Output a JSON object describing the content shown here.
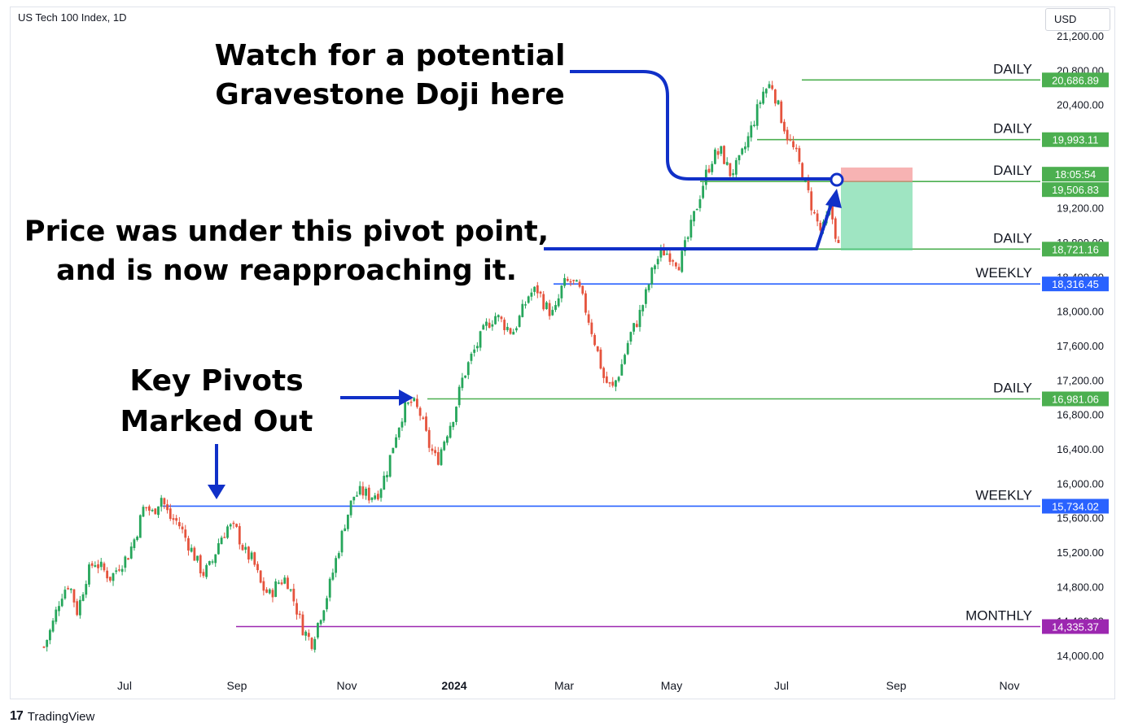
{
  "header": {
    "symbol": "US Tech 100 Index, 1D",
    "currency": "USD"
  },
  "footer": {
    "brand": "TradingView",
    "logo_text": "17"
  },
  "colors": {
    "up": "#26a65b",
    "down": "#e5533d",
    "daily": "#4caf50",
    "weekly": "#2962ff",
    "monthly": "#9c27b0",
    "annotation": "#1030c8"
  },
  "chart_data": {
    "type": "candlestick",
    "title": "",
    "ylim": [
      13900,
      21200
    ],
    "y_ticks": [
      "21,200.00",
      "20,800.00",
      "20,400.00",
      "20,000.00",
      "19,600.00",
      "19,200.00",
      "18,800.00",
      "18,400.00",
      "18,000.00",
      "17,600.00",
      "17,200.00",
      "16,800.00",
      "16,400.00",
      "16,000.00",
      "15,600.00",
      "15,200.00",
      "14,800.00",
      "14,400.00",
      "14,000.00"
    ],
    "x_ticks": [
      "Jul",
      "Sep",
      "Nov",
      "2024",
      "Mar",
      "May",
      "Jul",
      "Sep",
      "Nov"
    ],
    "close_path": [
      14100,
      14350,
      14700,
      14850,
      14500,
      14900,
      15100,
      15000,
      14900,
      15050,
      15150,
      15400,
      15750,
      15650,
      15850,
      15600,
      15550,
      15350,
      15150,
      14950,
      15050,
      15350,
      15500,
      15450,
      15200,
      15100,
      14800,
      14700,
      14850,
      14900,
      14600,
      14300,
      14150,
      14450,
      14750,
      15150,
      15550,
      15850,
      15900,
      15850,
      15900,
      16150,
      16550,
      16850,
      16950,
      16800,
      16450,
      16250,
      16550,
      16800,
      17200,
      17450,
      17650,
      17850,
      17950,
      17850,
      17750,
      17950,
      18200,
      18250,
      18050,
      17950,
      18300,
      18350,
      18250,
      17950,
      17600,
      17200,
      17100,
      17350,
      17700,
      17900,
      18200,
      18550,
      18700,
      18650,
      18550,
      18850,
      19200,
      19550,
      19800,
      19850,
      19600,
      19700,
      19950,
      20250,
      20550,
      20650,
      20300,
      20000,
      19800,
      19500,
      19150,
      18900,
      19200,
      18750
    ],
    "levels": [
      {
        "label": "DAILY",
        "value": "20,686.89",
        "color": "daily"
      },
      {
        "label": "DAILY",
        "value": "19,993.11",
        "color": "daily"
      },
      {
        "label": "DAILY",
        "value": "19,506.83",
        "color": "daily",
        "timer": "18:05:54"
      },
      {
        "label": "DAILY",
        "value": "18,721.16",
        "color": "daily"
      },
      {
        "label": "WEEKLY",
        "value": "18,316.45",
        "color": "weekly"
      },
      {
        "label": "DAILY",
        "value": "16,981.06",
        "color": "daily"
      },
      {
        "label": "WEEKLY",
        "value": "15,734.02",
        "color": "weekly"
      },
      {
        "label": "MONTHLY",
        "value": "14,335.37",
        "color": "monthly"
      }
    ],
    "annotations": [
      {
        "lines": [
          "Watch for a potential",
          "Gravestone Doji here"
        ]
      },
      {
        "lines": [
          "Price was under this pivot point,",
          "and is now reapproaching it."
        ]
      },
      {
        "lines": [
          "Key Pivots",
          "Marked Out"
        ]
      }
    ]
  }
}
